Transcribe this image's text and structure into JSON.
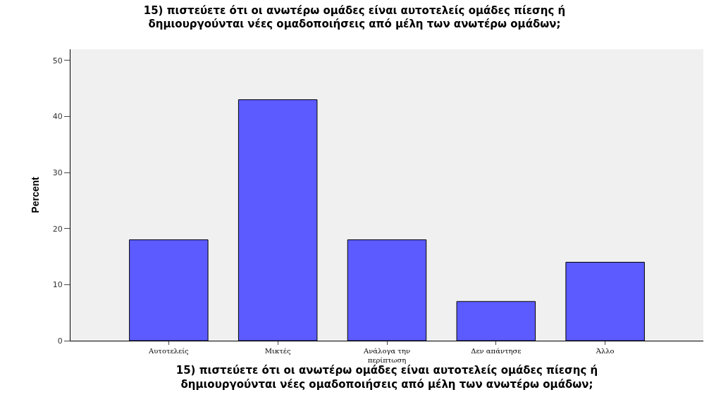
{
  "chart_data": {
    "type": "bar",
    "title": "15) πιστεύετε ότι οι ανωτέρω ομάδες είναι αυτοτελείς ομάδες πίεσης ή\nδημιουργούνται νέες ομαδοποιήσεις από μέλη των ανωτέρω ομάδων;",
    "xlabel": "15) πιστεύετε ότι οι ανωτέρω ομάδες είναι αυτοτελείς ομάδες πίεσης ή\nδημιουργούνται νέες ομαδοποιήσεις από μέλη των ανωτέρω ομάδων;",
    "ylabel": "Percent",
    "categories": [
      "Αυτοτελείς",
      "Μικτές",
      "Ανάλογα την\nπερίπτωση",
      "Δεν απάντησε",
      "Άλλο"
    ],
    "values": [
      18,
      43,
      18,
      7,
      14
    ],
    "color": "#5b5bff",
    "ylim": [
      0,
      52
    ],
    "yticks": [
      0,
      10,
      20,
      30,
      40,
      50
    ],
    "grid": false,
    "legend": false
  }
}
